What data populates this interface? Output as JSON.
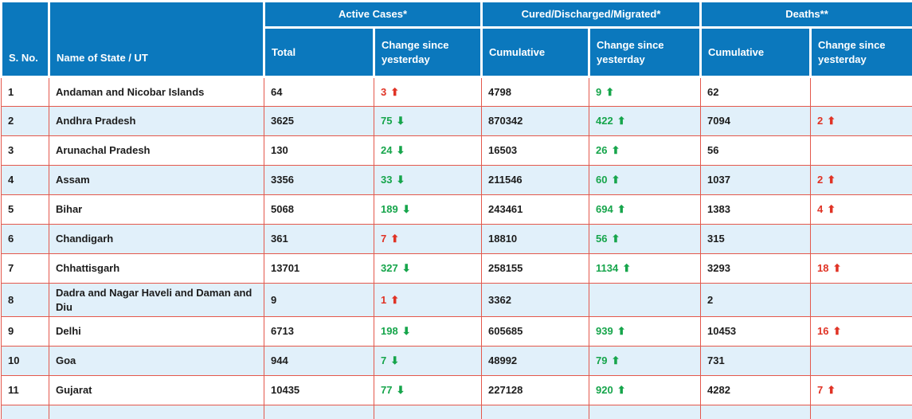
{
  "colors": {
    "header_background": "#0b78bd",
    "grid_border": "#e4584c",
    "alt_row_background": "#e1f0fa",
    "increase_red": "#e03325",
    "decrease_green": "#16a54b"
  },
  "icons": {
    "up": "⬆",
    "down": "⬇"
  },
  "chart_data": {
    "type": "table",
    "group_headers": [
      "Active Cases*",
      "Cured/Discharged/Migrated*",
      "Deaths**"
    ],
    "columns": [
      "S. No.",
      "Name of State / UT",
      "Total",
      "Change since yesterday",
      "Cumulative",
      "Change since yesterday",
      "Cumulative",
      "Change since yesterday"
    ],
    "rows": [
      {
        "sno": "1",
        "state": "Andaman and Nicobar Islands",
        "active_total": "64",
        "active_change": {
          "value": "3",
          "dir": "up",
          "color": "red"
        },
        "cured_total": "4798",
        "cured_change": {
          "value": "9",
          "dir": "up",
          "color": "green"
        },
        "deaths_total": "62",
        "deaths_change": null
      },
      {
        "sno": "2",
        "state": "Andhra Pradesh",
        "active_total": "3625",
        "active_change": {
          "value": "75",
          "dir": "down",
          "color": "green"
        },
        "cured_total": "870342",
        "cured_change": {
          "value": "422",
          "dir": "up",
          "color": "green"
        },
        "deaths_total": "7094",
        "deaths_change": {
          "value": "2",
          "dir": "up",
          "color": "red"
        }
      },
      {
        "sno": "3",
        "state": "Arunachal Pradesh",
        "active_total": "130",
        "active_change": {
          "value": "24",
          "dir": "down",
          "color": "green"
        },
        "cured_total": "16503",
        "cured_change": {
          "value": "26",
          "dir": "up",
          "color": "green"
        },
        "deaths_total": "56",
        "deaths_change": null
      },
      {
        "sno": "4",
        "state": "Assam",
        "active_total": "3356",
        "active_change": {
          "value": "33",
          "dir": "down",
          "color": "green"
        },
        "cured_total": "211546",
        "cured_change": {
          "value": "60",
          "dir": "up",
          "color": "green"
        },
        "deaths_total": "1037",
        "deaths_change": {
          "value": "2",
          "dir": "up",
          "color": "red"
        }
      },
      {
        "sno": "5",
        "state": "Bihar",
        "active_total": "5068",
        "active_change": {
          "value": "189",
          "dir": "down",
          "color": "green"
        },
        "cured_total": "243461",
        "cured_change": {
          "value": "694",
          "dir": "up",
          "color": "green"
        },
        "deaths_total": "1383",
        "deaths_change": {
          "value": "4",
          "dir": "up",
          "color": "red"
        }
      },
      {
        "sno": "6",
        "state": "Chandigarh",
        "active_total": "361",
        "active_change": {
          "value": "7",
          "dir": "up",
          "color": "red"
        },
        "cured_total": "18810",
        "cured_change": {
          "value": "56",
          "dir": "up",
          "color": "green"
        },
        "deaths_total": "315",
        "deaths_change": null
      },
      {
        "sno": "7",
        "state": "Chhattisgarh",
        "active_total": "13701",
        "active_change": {
          "value": "327",
          "dir": "down",
          "color": "green"
        },
        "cured_total": "258155",
        "cured_change": {
          "value": "1134",
          "dir": "up",
          "color": "green"
        },
        "deaths_total": "3293",
        "deaths_change": {
          "value": "18",
          "dir": "up",
          "color": "red"
        }
      },
      {
        "sno": "8",
        "state": "Dadra and Nagar Haveli and Daman and Diu",
        "active_total": "9",
        "active_change": {
          "value": "1",
          "dir": "up",
          "color": "red"
        },
        "cured_total": "3362",
        "cured_change": null,
        "deaths_total": "2",
        "deaths_change": null
      },
      {
        "sno": "9",
        "state": "Delhi",
        "active_total": "6713",
        "active_change": {
          "value": "198",
          "dir": "down",
          "color": "green"
        },
        "cured_total": "605685",
        "cured_change": {
          "value": "939",
          "dir": "up",
          "color": "green"
        },
        "deaths_total": "10453",
        "deaths_change": {
          "value": "16",
          "dir": "up",
          "color": "red"
        }
      },
      {
        "sno": "10",
        "state": "Goa",
        "active_total": "944",
        "active_change": {
          "value": "7",
          "dir": "down",
          "color": "green"
        },
        "cured_total": "48992",
        "cured_change": {
          "value": "79",
          "dir": "up",
          "color": "green"
        },
        "deaths_total": "731",
        "deaths_change": null
      },
      {
        "sno": "11",
        "state": "Gujarat",
        "active_total": "10435",
        "active_change": {
          "value": "77",
          "dir": "down",
          "color": "green"
        },
        "cured_total": "227128",
        "cured_change": {
          "value": "920",
          "dir": "up",
          "color": "green"
        },
        "deaths_total": "4282",
        "deaths_change": {
          "value": "7",
          "dir": "up",
          "color": "red"
        }
      }
    ]
  }
}
